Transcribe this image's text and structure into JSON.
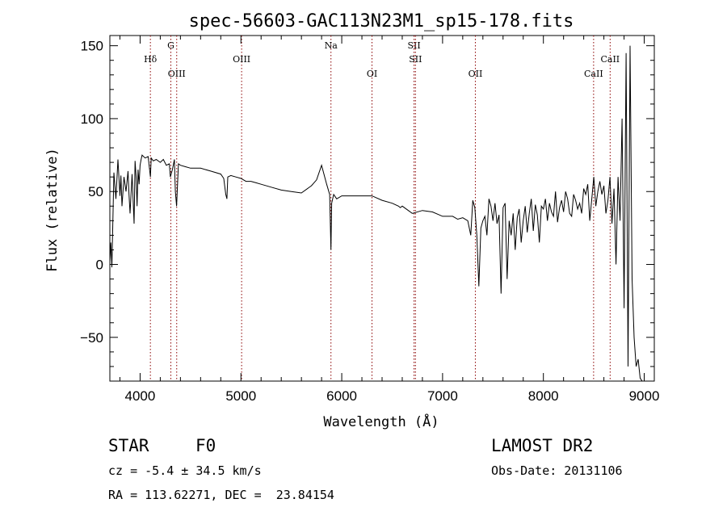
{
  "chart_data": {
    "type": "line",
    "title": "spec-56603-GAC113N23M1_sp15-178.fits",
    "xlabel": "Wavelength (Å)",
    "ylabel": "Flux (relative)",
    "xlim": [
      3700,
      9100
    ],
    "ylim": [
      -80,
      157
    ],
    "xticks": [
      4000,
      5000,
      6000,
      7000,
      8000,
      9000
    ],
    "yticks": [
      -50,
      0,
      50,
      100,
      150
    ],
    "grid": false,
    "line_color": "#000000",
    "marker_color": "#8b0000",
    "series": [
      {
        "x": [
          3700,
          3710,
          3720,
          3740,
          3760,
          3780,
          3800,
          3810,
          3820,
          3840,
          3860,
          3880,
          3890,
          3900,
          3920,
          3940,
          3950,
          3960,
          3970,
          3980,
          3990,
          4000,
          4010,
          4020,
          4050,
          4080,
          4102,
          4110,
          4130,
          4160,
          4200,
          4230,
          4260,
          4290,
          4300,
          4320,
          4340,
          4350,
          4362,
          4380,
          4400,
          4450,
          4500,
          4600,
          4700,
          4800,
          4830,
          4850,
          4861,
          4870,
          4900,
          4950,
          5000,
          5050,
          5100,
          5150,
          5200,
          5300,
          5400,
          5500,
          5600,
          5700,
          5750,
          5800,
          5850,
          5880,
          5893,
          5900,
          5920,
          5950,
          6000,
          6100,
          6200,
          6300,
          6400,
          6500,
          6563,
          6580,
          6600,
          6700,
          6800,
          6900,
          7000,
          7100,
          7150,
          7200,
          7250,
          7280,
          7300,
          7320,
          7340,
          7360,
          7380,
          7400,
          7420,
          7440,
          7460,
          7480,
          7500,
          7520,
          7540,
          7560,
          7580,
          7600,
          7620,
          7640,
          7660,
          7680,
          7700,
          7720,
          7740,
          7760,
          7780,
          7800,
          7820,
          7840,
          7860,
          7880,
          7900,
          7920,
          7940,
          7960,
          7980,
          8000,
          8020,
          8040,
          8060,
          8080,
          8100,
          8120,
          8140,
          8160,
          8180,
          8200,
          8220,
          8240,
          8260,
          8280,
          8300,
          8320,
          8340,
          8360,
          8380,
          8400,
          8420,
          8440,
          8460,
          8480,
          8500,
          8520,
          8540,
          8560,
          8580,
          8600,
          8620,
          8640,
          8660,
          8680,
          8700,
          8720,
          8740,
          8760,
          8780,
          8800,
          8820,
          8840,
          8860,
          8880,
          8900,
          8920,
          8940,
          8960,
          8980,
          9000
        ],
        "y": [
          2,
          15,
          -2,
          63,
          45,
          72,
          47,
          61,
          40,
          60,
          50,
          64,
          48,
          35,
          62,
          28,
          71,
          60,
          40,
          65,
          55,
          68,
          72,
          75,
          73,
          74,
          60,
          73,
          71,
          72,
          70,
          72,
          68,
          69,
          60,
          65,
          72,
          50,
          40,
          69,
          68,
          67,
          66,
          66,
          64,
          62,
          59,
          48,
          45,
          60,
          61,
          60,
          59,
          57,
          57,
          56,
          55,
          53,
          51,
          50,
          49,
          54,
          58,
          68,
          55,
          48,
          10,
          42,
          48,
          45,
          47,
          47,
          47,
          47,
          44,
          42,
          40,
          39,
          40,
          35,
          37,
          36,
          33,
          33,
          31,
          32,
          30,
          20,
          44,
          39,
          20,
          -15,
          25,
          30,
          33,
          20,
          45,
          40,
          30,
          42,
          28,
          34,
          -20,
          39,
          42,
          -10,
          30,
          20,
          35,
          10,
          32,
          38,
          15,
          30,
          40,
          22,
          35,
          45,
          23,
          41,
          34,
          15,
          40,
          38,
          45,
          30,
          42,
          36,
          33,
          50,
          29,
          39,
          44,
          36,
          50,
          45,
          35,
          33,
          48,
          44,
          38,
          42,
          35,
          52,
          48,
          55,
          30,
          45,
          60,
          40,
          50,
          57,
          48,
          54,
          35,
          44,
          60,
          28,
          52,
          0,
          60,
          30,
          100,
          -30,
          145,
          -70,
          150,
          -10,
          -50,
          -70,
          -65,
          -78,
          -80,
          -80
        ]
      }
    ],
    "line_markers": [
      {
        "label": "Hδ",
        "x": 4102,
        "row": 1
      },
      {
        "label": "G",
        "x": 4305,
        "row": 0
      },
      {
        "label": "OIII",
        "x": 4363,
        "row": 2
      },
      {
        "label": "OIII",
        "x": 5007,
        "row": 1
      },
      {
        "label": "Na",
        "x": 5893,
        "row": 0
      },
      {
        "label": "OI",
        "x": 6300,
        "row": 2
      },
      {
        "label": "SII",
        "x": 6717,
        "row": 0
      },
      {
        "label": "SII",
        "x": 6731,
        "row": 1
      },
      {
        "label": "OII",
        "x": 7325,
        "row": 2
      },
      {
        "label": "CaII",
        "x": 8498,
        "row": 2
      },
      {
        "label": "CaII",
        "x": 8662,
        "row": 1
      }
    ]
  },
  "info": {
    "object_class": "STAR",
    "subclass": "F0",
    "survey": "LAMOST DR2",
    "redshift": "cz = -5.4 ± 34.5 km/s",
    "obs_date": "Obs-Date: 20131106",
    "coords": "RA = 113.62271, DEC =  23.84154"
  }
}
